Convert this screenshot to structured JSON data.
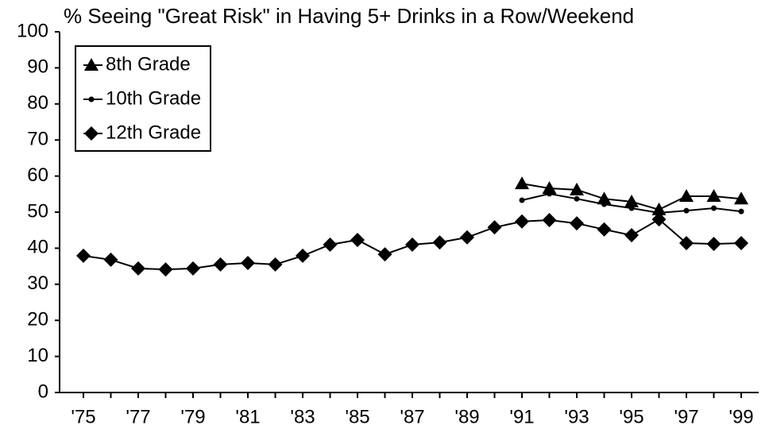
{
  "chart_data": {
    "type": "line",
    "title": "% Seeing \"Great Risk\" in Having 5+ Drinks in a Row/Weekend",
    "categories": [
      "'75",
      null,
      "'77",
      null,
      "'79",
      null,
      "'81",
      null,
      "'83",
      null,
      "'85",
      null,
      "'87",
      null,
      "'89",
      null,
      "'91",
      null,
      "'93",
      null,
      "'95",
      null,
      "'97",
      null,
      "'99"
    ],
    "series": [
      {
        "name": "8th Grade",
        "color": "#000000",
        "marker": "triangle",
        "values": [
          null,
          null,
          null,
          null,
          null,
          null,
          null,
          null,
          null,
          null,
          null,
          null,
          null,
          null,
          null,
          null,
          57.9,
          56.6,
          56.2,
          53.7,
          52.9,
          50.7,
          54.4,
          54.4,
          53.7
        ]
      },
      {
        "name": "10th Grade",
        "color": "#000000",
        "marker": "dot",
        "values": [
          null,
          null,
          null,
          null,
          null,
          null,
          null,
          null,
          null,
          null,
          null,
          null,
          null,
          null,
          null,
          null,
          53.3,
          55.1,
          53.7,
          52.2,
          51.1,
          49.8,
          50.4,
          51.1,
          50.2
        ]
      },
      {
        "name": "12th Grade",
        "color": "#000000",
        "marker": "diamond",
        "values": [
          37.9,
          36.8,
          34.4,
          34.1,
          34.4,
          35.5,
          35.9,
          35.5,
          37.9,
          41.0,
          42.3,
          38.3,
          41.0,
          41.6,
          43.0,
          45.8,
          47.4,
          47.8,
          46.9,
          45.2,
          43.6,
          48.0,
          41.4,
          41.2,
          41.4
        ]
      }
    ],
    "ylim": [
      0,
      100
    ],
    "yticks": [
      0,
      10,
      20,
      30,
      40,
      50,
      60,
      70,
      80,
      90,
      100
    ],
    "grid": false,
    "legend": "upper left"
  }
}
